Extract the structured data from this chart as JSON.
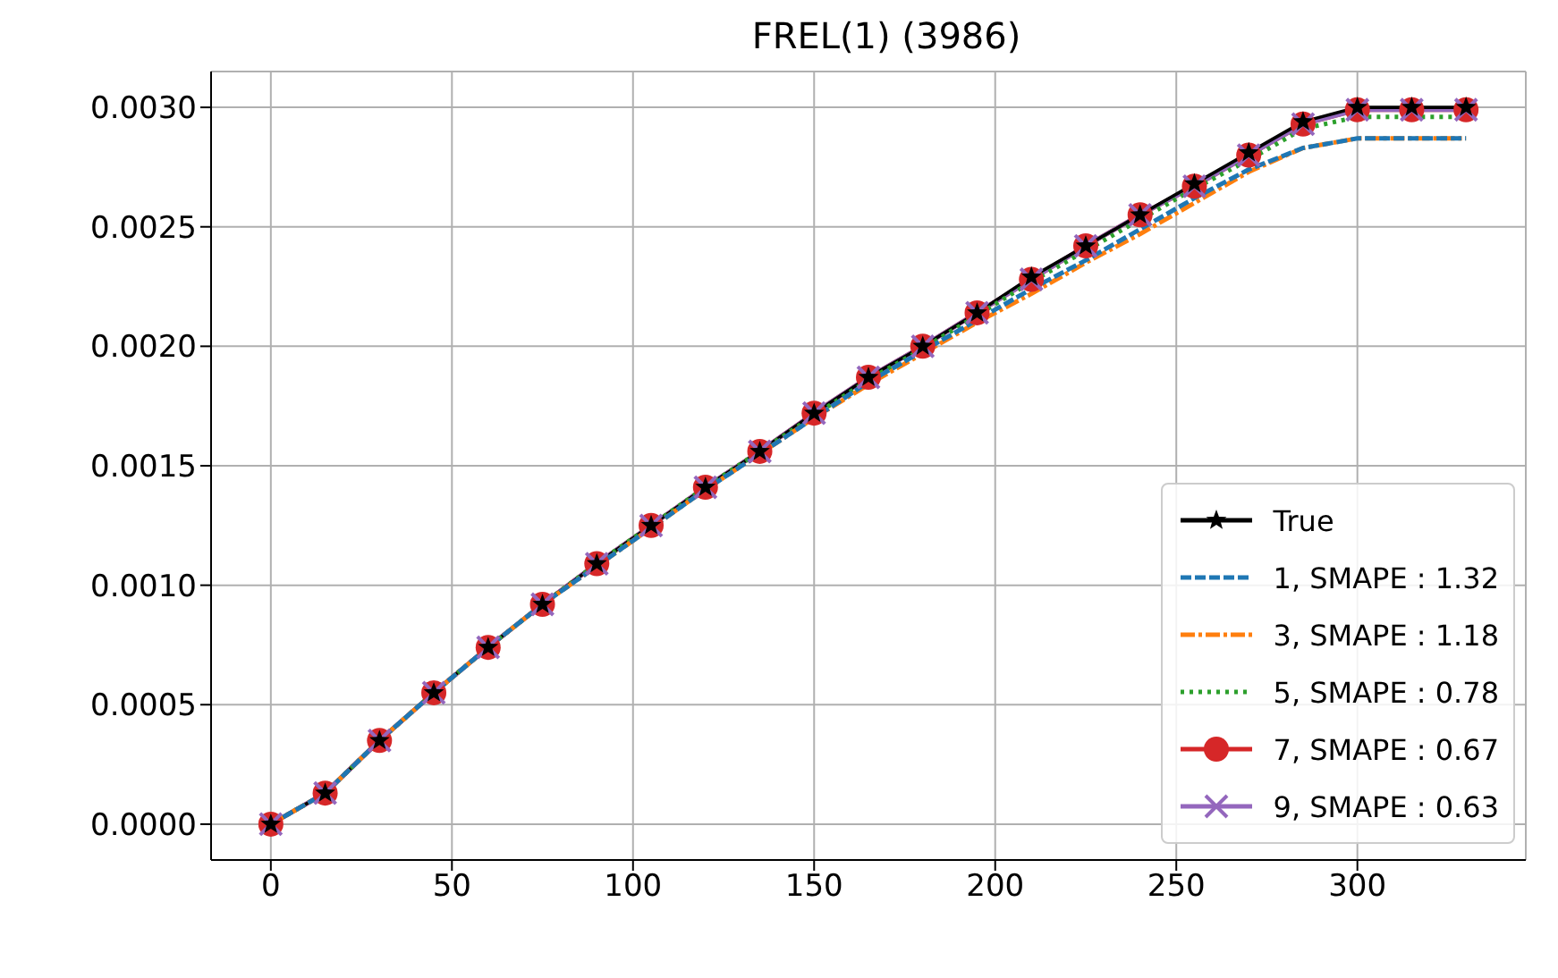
{
  "chart_data": {
    "type": "line",
    "title": "FREL(1) (3986)",
    "x": [
      0,
      15,
      30,
      45,
      60,
      75,
      90,
      105,
      120,
      135,
      150,
      165,
      180,
      195,
      210,
      225,
      240,
      255,
      270,
      285,
      300,
      315,
      330
    ],
    "series": [
      {
        "name": "True",
        "color": "#000000",
        "marker": "star",
        "line_style": "solid",
        "values": [
          0,
          0.00013,
          0.00035,
          0.00055,
          0.00074,
          0.00092,
          0.00109,
          0.00125,
          0.00141,
          0.00156,
          0.00172,
          0.00187,
          0.002,
          0.00214,
          0.00229,
          0.00242,
          0.00255,
          0.00268,
          0.00281,
          0.00294,
          0.003,
          0.003,
          0.003
        ]
      },
      {
        "name": "1, SMAPE : 1.32",
        "color": "#1f77b4",
        "marker": "none",
        "line_style": "dashed",
        "values": [
          0,
          0.00013,
          0.00035,
          0.00055,
          0.00074,
          0.00092,
          0.00108,
          0.00124,
          0.0014,
          0.00155,
          0.0017,
          0.00185,
          0.00198,
          0.00211,
          0.00224,
          0.00236,
          0.00249,
          0.00262,
          0.00274,
          0.00283,
          0.00287,
          0.00287,
          0.00287
        ]
      },
      {
        "name": "3, SMAPE : 1.18",
        "color": "#ff7f0e",
        "marker": "none",
        "line_style": "dashdot",
        "values": [
          0,
          0.00013,
          0.00035,
          0.00055,
          0.00074,
          0.00092,
          0.00108,
          0.00124,
          0.0014,
          0.00155,
          0.0017,
          0.00184,
          0.00197,
          0.0021,
          0.00222,
          0.00235,
          0.00247,
          0.0026,
          0.00273,
          0.00283,
          0.00287,
          0.00287,
          0.00287
        ]
      },
      {
        "name": "5, SMAPE : 0.78",
        "color": "#2ca02c",
        "marker": "none",
        "line_style": "dotted",
        "values": [
          0,
          0.00013,
          0.00035,
          0.00055,
          0.00074,
          0.00092,
          0.00109,
          0.00125,
          0.00141,
          0.00156,
          0.00171,
          0.00186,
          0.00199,
          0.00213,
          0.00227,
          0.0024,
          0.00253,
          0.00266,
          0.00278,
          0.00291,
          0.00296,
          0.00296,
          0.00296
        ]
      },
      {
        "name": "7, SMAPE : 0.67",
        "color": "#d62728",
        "marker": "circle",
        "line_style": "solid",
        "values": [
          0,
          0.00013,
          0.00035,
          0.00055,
          0.00074,
          0.00092,
          0.00109,
          0.00125,
          0.00141,
          0.00156,
          0.00172,
          0.00187,
          0.002,
          0.00214,
          0.00228,
          0.00242,
          0.00255,
          0.00267,
          0.0028,
          0.00293,
          0.00299,
          0.00299,
          0.00299
        ]
      },
      {
        "name": "9, SMAPE : 0.63",
        "color": "#9467bd",
        "marker": "cross",
        "line_style": "solid",
        "values": [
          0,
          0.00013,
          0.00035,
          0.00055,
          0.00074,
          0.00092,
          0.00109,
          0.00125,
          0.00141,
          0.00156,
          0.00172,
          0.00187,
          0.002,
          0.00214,
          0.00228,
          0.00242,
          0.00255,
          0.00267,
          0.0028,
          0.00293,
          0.00299,
          0.00299,
          0.00299
        ]
      }
    ],
    "xlim": [
      -16.5,
      346.5
    ],
    "xticks": [
      0,
      50,
      100,
      150,
      200,
      250,
      300
    ],
    "ylim": [
      -0.00015,
      0.00315
    ],
    "yticks": [
      {
        "value": 0,
        "label": "0.0000"
      },
      {
        "value": 0.0005,
        "label": "0.0005"
      },
      {
        "value": 0.001,
        "label": "0.0010"
      },
      {
        "value": 0.0015,
        "label": "0.0015"
      },
      {
        "value": 0.002,
        "label": "0.0020"
      },
      {
        "value": 0.0025,
        "label": "0.0025"
      },
      {
        "value": 0.003,
        "label": "0.0030"
      }
    ],
    "grid": true,
    "legend": "lower right"
  }
}
